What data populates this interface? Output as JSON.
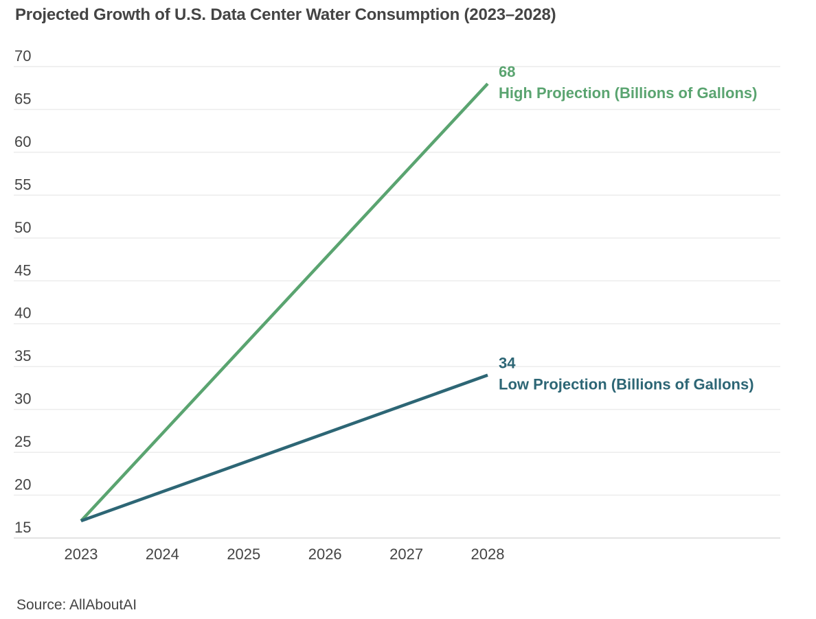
{
  "chart_data": {
    "type": "line",
    "title": "Projected Growth of U.S. Data Center Water Consumption (2023–2028)",
    "xlabel": "",
    "ylabel": "",
    "x": [
      "2023",
      "2024",
      "2025",
      "2026",
      "2027",
      "2028"
    ],
    "ylim": [
      15,
      70
    ],
    "yticks": [
      15,
      20,
      25,
      30,
      35,
      40,
      45,
      50,
      55,
      60,
      65,
      70
    ],
    "grid": true,
    "legend": "direct-labels-at-line-end",
    "series": [
      {
        "name": "High Projection (Billions of Gallons)",
        "color": "#5aa470",
        "values": [
          17,
          27.2,
          37.4,
          47.6,
          57.8,
          68
        ],
        "end_label": "68"
      },
      {
        "name": "Low Projection (Billions of Gallons)",
        "color": "#2d6675",
        "values": [
          17,
          20.4,
          23.8,
          27.2,
          30.6,
          34
        ],
        "end_label": "34"
      }
    ],
    "source": "Source: AllAboutAI"
  }
}
